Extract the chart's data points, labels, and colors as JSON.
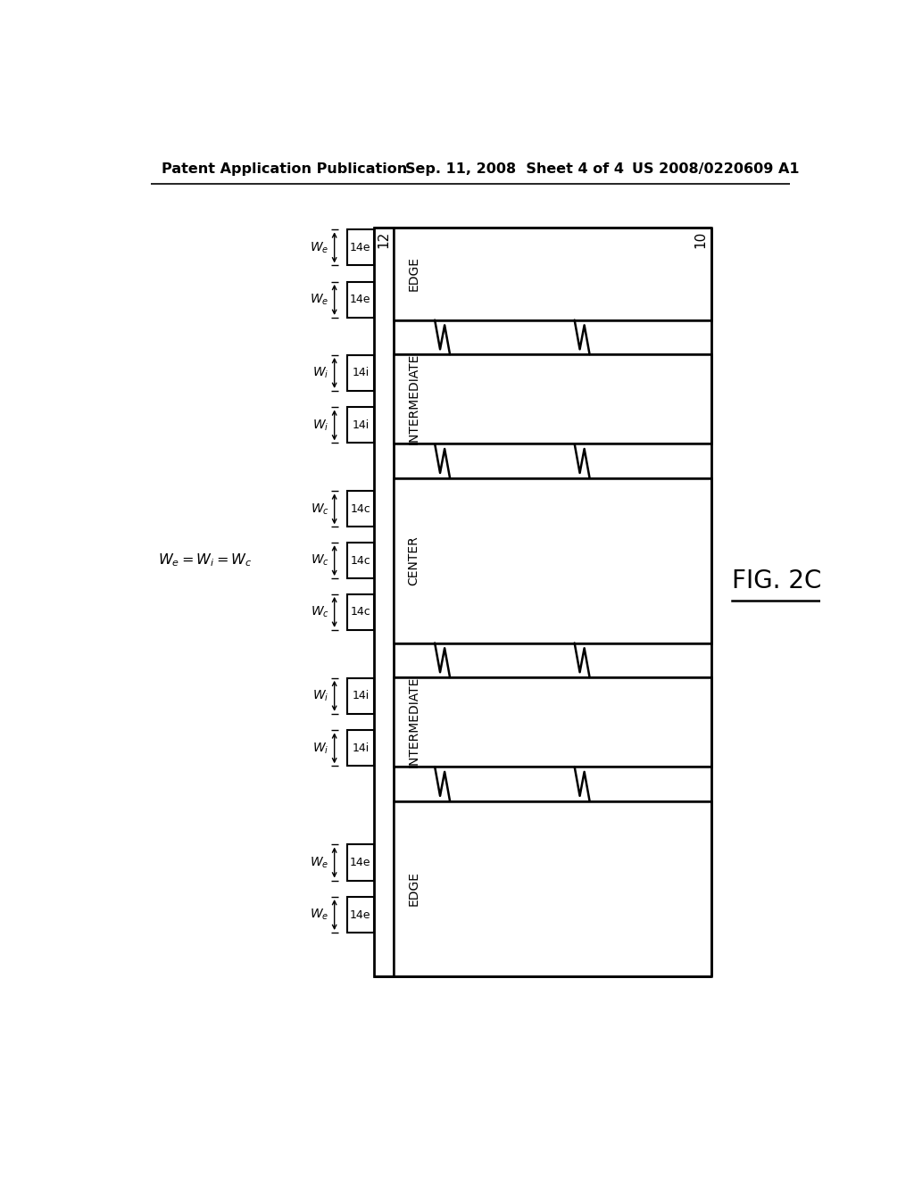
{
  "header_left": "Patent Application Publication",
  "header_mid": "Sep. 11, 2008  Sheet 4 of 4",
  "header_right": "US 2008/0220609 A1",
  "fig_label": "FIG. 2C",
  "bg_color": "#ffffff",
  "line_color": "#000000",
  "ref_12": "12",
  "ref_10": "10",
  "zones": [
    {
      "label": "EDGE",
      "features": 2,
      "type": "edge"
    },
    {
      "label": "INTERMEDIATE",
      "features": 2,
      "type": "inter"
    },
    {
      "label": "CENTER",
      "features": 3,
      "type": "center"
    },
    {
      "label": "INTERMEDIATE",
      "features": 2,
      "type": "inter"
    },
    {
      "label": "EDGE",
      "features": 2,
      "type": "edge"
    }
  ],
  "feature_info": {
    "edge": {
      "box_label": "14e",
      "width_label": "W_e"
    },
    "inter": {
      "box_label": "14i",
      "width_label": "W_i"
    },
    "center": {
      "box_label": "14c",
      "width_label": "W_c"
    }
  }
}
